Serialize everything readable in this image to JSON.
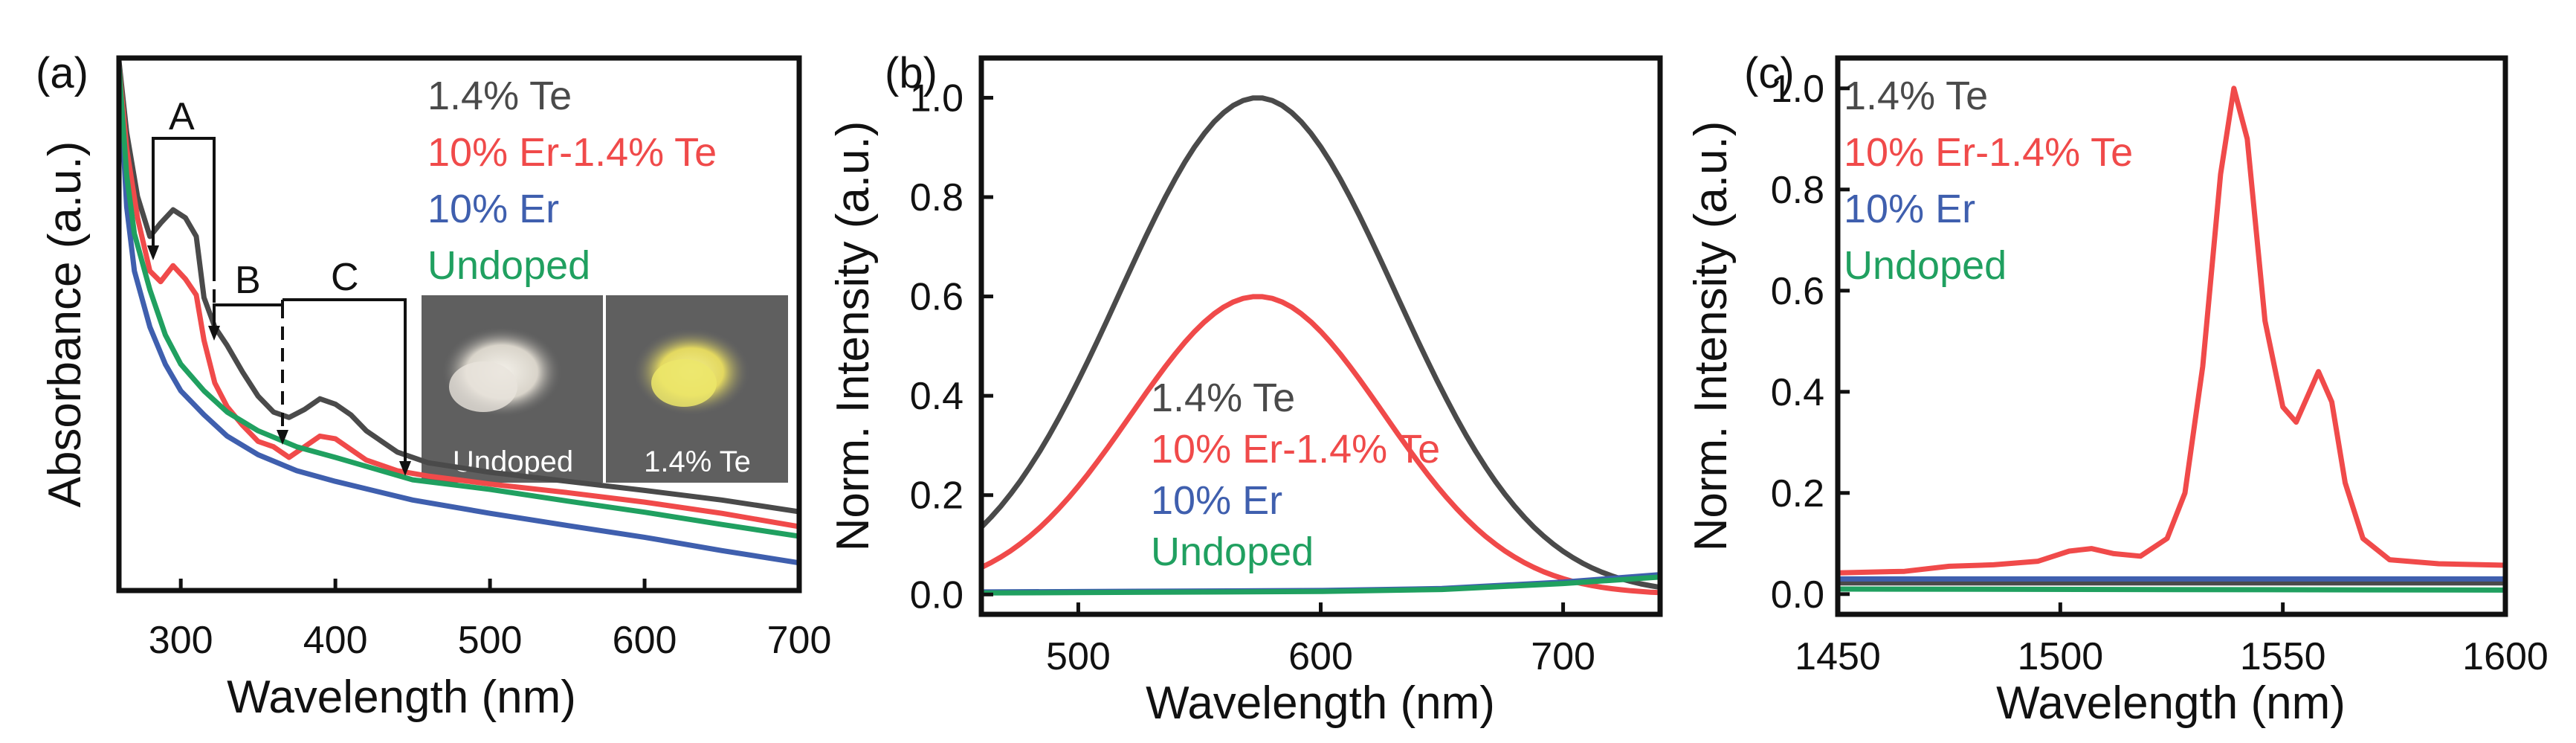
{
  "figure": {
    "colors": {
      "te": "#4a4a4a",
      "er_te": "#f04a4a",
      "er": "#3f5fae",
      "undoped": "#20a060"
    }
  },
  "chart_data": [
    {
      "type": "line",
      "panel": "(a)",
      "xlabel": "Wavelength (nm)",
      "ylabel": "Absorbance (a.u.)",
      "xlim": [
        260,
        700
      ],
      "ylim": [
        0,
        1
      ],
      "xticks": [
        "300",
        "400",
        "500",
        "600",
        "700"
      ],
      "show_yticks": false,
      "series": [
        {
          "name": "1.4% Te",
          "color": "#4a4a4a",
          "points": [
            [
              260,
              0.995
            ],
            [
              265,
              0.86
            ],
            [
              272,
              0.74
            ],
            [
              280,
              0.665
            ],
            [
              287,
              0.69
            ],
            [
              295,
              0.715
            ],
            [
              303,
              0.7
            ],
            [
              310,
              0.665
            ],
            [
              315,
              0.55
            ],
            [
              322,
              0.495
            ],
            [
              330,
              0.46
            ],
            [
              340,
              0.41
            ],
            [
              350,
              0.365
            ],
            [
              360,
              0.335
            ],
            [
              370,
              0.325
            ],
            [
              380,
              0.34
            ],
            [
              390,
              0.36
            ],
            [
              400,
              0.35
            ],
            [
              410,
              0.33
            ],
            [
              420,
              0.3
            ],
            [
              440,
              0.26
            ],
            [
              460,
              0.24
            ],
            [
              500,
              0.222
            ],
            [
              550,
              0.205
            ],
            [
              600,
              0.188
            ],
            [
              650,
              0.17
            ],
            [
              700,
              0.148
            ]
          ]
        },
        {
          "name": "10% Er-1.4% Te",
          "color": "#f04a4a",
          "points": [
            [
              260,
              0.985
            ],
            [
              265,
              0.83
            ],
            [
              272,
              0.7
            ],
            [
              280,
              0.6
            ],
            [
              287,
              0.58
            ],
            [
              295,
              0.61
            ],
            [
              303,
              0.585
            ],
            [
              310,
              0.555
            ],
            [
              315,
              0.47
            ],
            [
              322,
              0.39
            ],
            [
              330,
              0.345
            ],
            [
              340,
              0.31
            ],
            [
              350,
              0.28
            ],
            [
              360,
              0.27
            ],
            [
              370,
              0.25
            ],
            [
              380,
              0.27
            ],
            [
              390,
              0.29
            ],
            [
              400,
              0.285
            ],
            [
              410,
              0.265
            ],
            [
              420,
              0.245
            ],
            [
              440,
              0.225
            ],
            [
              460,
              0.215
            ],
            [
              500,
              0.2
            ],
            [
              550,
              0.184
            ],
            [
              600,
              0.166
            ],
            [
              650,
              0.145
            ],
            [
              700,
              0.12
            ]
          ]
        },
        {
          "name": "10% Er",
          "color": "#3f5fae",
          "points": [
            [
              260,
              0.985
            ],
            [
              265,
              0.72
            ],
            [
              270,
              0.6
            ],
            [
              280,
              0.495
            ],
            [
              290,
              0.425
            ],
            [
              300,
              0.375
            ],
            [
              315,
              0.33
            ],
            [
              330,
              0.29
            ],
            [
              350,
              0.255
            ],
            [
              375,
              0.225
            ],
            [
              400,
              0.205
            ],
            [
              450,
              0.17
            ],
            [
              500,
              0.145
            ],
            [
              550,
              0.122
            ],
            [
              600,
              0.1
            ],
            [
              650,
              0.075
            ],
            [
              700,
              0.052
            ]
          ]
        },
        {
          "name": "Undoped",
          "color": "#20a060",
          "points": [
            [
              260,
              0.985
            ],
            [
              265,
              0.78
            ],
            [
              270,
              0.67
            ],
            [
              280,
              0.565
            ],
            [
              290,
              0.48
            ],
            [
              300,
              0.425
            ],
            [
              315,
              0.375
            ],
            [
              330,
              0.335
            ],
            [
              350,
              0.3
            ],
            [
              375,
              0.27
            ],
            [
              400,
              0.25
            ],
            [
              450,
              0.208
            ],
            [
              500,
              0.19
            ],
            [
              550,
              0.168
            ],
            [
              600,
              0.147
            ],
            [
              650,
              0.124
            ],
            [
              700,
              0.102
            ]
          ]
        }
      ],
      "legend": [
        "1.4% Te",
        "10% Er-1.4% Te",
        "10% Er",
        "Undoped"
      ],
      "annotations": [
        "A",
        "B",
        "C"
      ],
      "inset_labels": [
        "Undoped",
        "1.4% Te"
      ]
    },
    {
      "type": "line",
      "panel": "(b)",
      "xlabel": "Wavelength (nm)",
      "ylabel": "Norm. Intensity (a.u.)",
      "xlim": [
        460,
        740
      ],
      "ylim": [
        -0.04,
        1.08
      ],
      "xticks": [
        "500",
        "600",
        "700"
      ],
      "yticks": [
        "0.0",
        "0.2",
        "0.4",
        "0.6",
        "0.8",
        "1.0"
      ],
      "series": [
        {
          "name": "1.4% Te",
          "color": "#4a4a4a",
          "peak": 1.0,
          "center": 574,
          "sigma": 57
        },
        {
          "name": "10% Er-1.4% Te",
          "color": "#f04a4a",
          "peak": 0.6,
          "center": 574,
          "sigma": 52
        },
        {
          "name": "10% Er",
          "color": "#3f5fae",
          "points": [
            [
              460,
              0.005
            ],
            [
              600,
              0.008
            ],
            [
              650,
              0.012
            ],
            [
              700,
              0.025
            ],
            [
              740,
              0.04
            ]
          ]
        },
        {
          "name": "Undoped",
          "color": "#20a060",
          "points": [
            [
              460,
              0.003
            ],
            [
              600,
              0.006
            ],
            [
              650,
              0.01
            ],
            [
              700,
              0.022
            ],
            [
              740,
              0.035
            ]
          ]
        }
      ],
      "legend": [
        "1.4% Te",
        "10% Er-1.4% Te",
        "10% Er",
        "Undoped"
      ]
    },
    {
      "type": "line",
      "panel": "(c)",
      "xlabel": "Wavelength (nm)",
      "ylabel": "Norm. Intensity (a.u.)",
      "xlim": [
        1450,
        1600
      ],
      "ylim": [
        -0.04,
        1.06
      ],
      "xticks": [
        "1450",
        "1500",
        "1550",
        "1600"
      ],
      "yticks": [
        "0.0",
        "0.2",
        "0.4",
        "0.6",
        "0.8",
        "1.0"
      ],
      "series": [
        {
          "name": "1.4% Te",
          "color": "#4a4a4a",
          "points": [
            [
              1450,
              0.022
            ],
            [
              1600,
              0.022
            ]
          ]
        },
        {
          "name": "10% Er-1.4% Te",
          "color": "#f04a4a",
          "points": [
            [
              1450,
              0.042
            ],
            [
              1465,
              0.045
            ],
            [
              1475,
              0.055
            ],
            [
              1485,
              0.058
            ],
            [
              1495,
              0.065
            ],
            [
              1502,
              0.085
            ],
            [
              1507,
              0.09
            ],
            [
              1512,
              0.08
            ],
            [
              1518,
              0.075
            ],
            [
              1524,
              0.11
            ],
            [
              1528,
              0.2
            ],
            [
              1532,
              0.45
            ],
            [
              1536,
              0.83
            ],
            [
              1539,
              1.0
            ],
            [
              1542,
              0.9
            ],
            [
              1546,
              0.54
            ],
            [
              1550,
              0.37
            ],
            [
              1553,
              0.34
            ],
            [
              1556,
              0.4
            ],
            [
              1558,
              0.44
            ],
            [
              1561,
              0.38
            ],
            [
              1564,
              0.22
            ],
            [
              1568,
              0.11
            ],
            [
              1574,
              0.068
            ],
            [
              1585,
              0.06
            ],
            [
              1600,
              0.057
            ]
          ]
        },
        {
          "name": "10% Er",
          "color": "#3f5fae",
          "points": [
            [
              1450,
              0.03
            ],
            [
              1600,
              0.03
            ]
          ]
        },
        {
          "name": "Undoped",
          "color": "#20a060",
          "points": [
            [
              1450,
              0.01
            ],
            [
              1600,
              0.008
            ]
          ]
        }
      ],
      "legend": [
        "1.4% Te",
        "10% Er-1.4% Te",
        "10% Er",
        "Undoped"
      ]
    }
  ]
}
